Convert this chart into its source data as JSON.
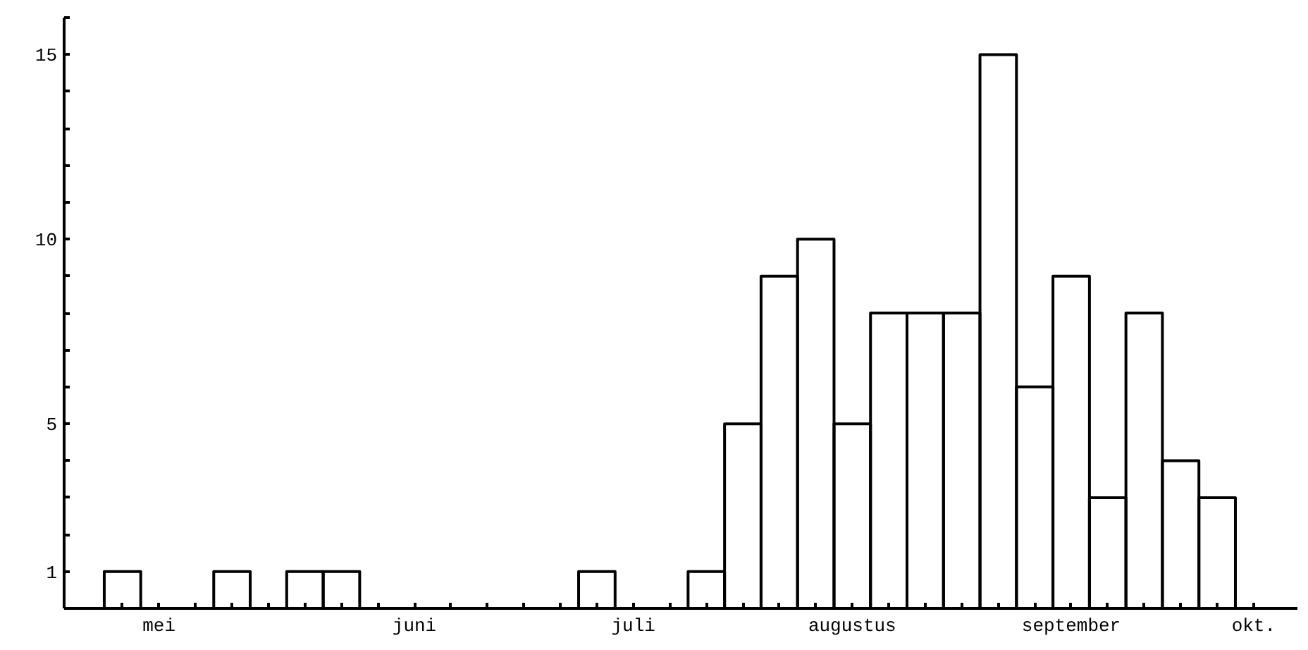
{
  "chart_data": {
    "type": "bar",
    "categories": [
      null,
      "mei",
      null,
      null,
      null,
      null,
      null,
      null,
      "juni",
      null,
      null,
      null,
      null,
      null,
      "juli",
      null,
      null,
      null,
      null,
      null,
      "augustus",
      null,
      null,
      null,
      null,
      null,
      "september",
      null,
      null,
      null,
      null,
      "okt."
    ],
    "values": [
      1,
      0,
      0,
      1,
      0,
      1,
      1,
      0,
      0,
      0,
      0,
      0,
      0,
      1,
      0,
      0,
      1,
      5,
      9,
      10,
      5,
      8,
      8,
      8,
      15,
      6,
      9,
      3,
      8,
      4,
      3,
      0
    ],
    "color": "#000000",
    "ylim": [
      0,
      16
    ],
    "yticks": [
      1,
      {
        "value": 2,
        "label": null
      },
      {
        "value": 3,
        "label": null
      },
      {
        "value": 4,
        "label": null
      },
      5,
      {
        "value": 6,
        "label": null
      },
      {
        "value": 7,
        "label": null
      },
      {
        "value": 8,
        "label": null
      },
      {
        "value": 9,
        "label": null
      },
      10,
      {
        "value": 11,
        "label": null
      },
      {
        "value": 12,
        "label": null
      },
      {
        "value": 13,
        "label": null
      },
      {
        "value": 14,
        "label": null
      },
      15,
      {
        "value": 16,
        "label": null
      }
    ],
    "grid": false
  }
}
